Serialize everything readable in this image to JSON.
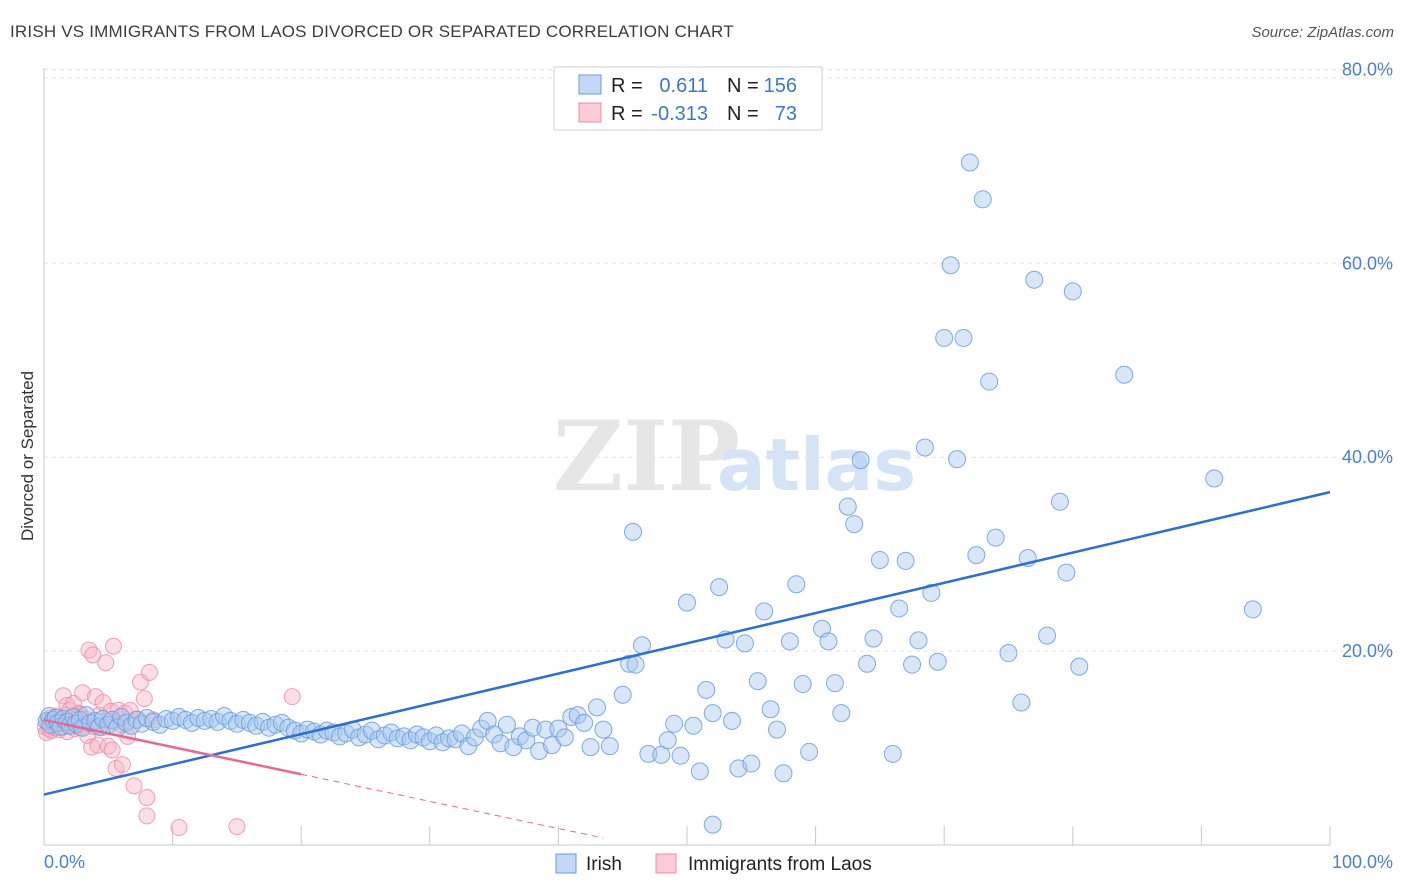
{
  "header": {
    "title": "IRISH VS IMMIGRANTS FROM LAOS DIVORCED OR SEPARATED CORRELATION CHART",
    "source": "Source: ZipAtlas.com"
  },
  "watermark": {
    "zip": "ZIP",
    "atlas": "atlas"
  },
  "legend": {
    "rows": [
      {
        "r_label": "R =",
        "r_value": "0.611",
        "n_label": "N =",
        "n_value": "156",
        "color": "#a9c8f0"
      },
      {
        "r_label": "R =",
        "r_value": "-0.313",
        "n_label": "N =",
        "n_value": "73",
        "color": "#f6b6c8"
      }
    ]
  },
  "bottom_legend": {
    "irish": "Irish",
    "laos": "Immigrants from Laos"
  },
  "colors": {
    "irish_fill": "#a9c8f0",
    "irish_stroke": "#6a9ee0",
    "irish_line": "#2f6fcf",
    "laos_fill": "#f6b6c8",
    "laos_stroke": "#ee8aa6",
    "laos_line": "#e46a92",
    "grid": "#e2e2e2",
    "tick_text": "#4a7fd1"
  },
  "chart_data": {
    "type": "scatter",
    "title": "IRISH VS IMMIGRANTS FROM LAOS DIVORCED OR SEPARATED CORRELATION CHART",
    "xlabel": "",
    "ylabel": "Divorced or Separated",
    "xlim": [
      0,
      100
    ],
    "ylim": [
      0,
      82
    ],
    "x_tick_labels": [
      "0.0%",
      "100.0%"
    ],
    "y_ticks": [
      20,
      40,
      60,
      80
    ],
    "y_tick_labels": [
      "20.0%",
      "40.0%",
      "60.0%",
      "80.0%"
    ],
    "grid": true,
    "legend_position": "top-center",
    "series": [
      {
        "name": "Irish",
        "R": 0.611,
        "N": 156,
        "trend": {
          "x0": 0,
          "y0": 5.2,
          "x1": 100,
          "y1": 36.4,
          "style": "solid"
        },
        "points": [
          [
            0.2,
            12.8
          ],
          [
            0.4,
            13.3
          ],
          [
            0.5,
            12.4
          ],
          [
            0.7,
            12.9
          ],
          [
            0.9,
            13.1
          ],
          [
            1.1,
            12.6
          ],
          [
            1.3,
            12.2
          ],
          [
            1.5,
            13.0
          ],
          [
            1.8,
            12.7
          ],
          [
            2.0,
            12.3
          ],
          [
            2.3,
            13.2
          ],
          [
            2.5,
            12.5
          ],
          [
            2.8,
            12.9
          ],
          [
            3.0,
            12.1
          ],
          [
            3.3,
            13.4
          ],
          [
            3.6,
            12.6
          ],
          [
            4.0,
            12.8
          ],
          [
            4.3,
            12.2
          ],
          [
            4.6,
            13.0
          ],
          [
            5.0,
            12.4
          ],
          [
            5.3,
            12.9
          ],
          [
            5.7,
            12.1
          ],
          [
            6.0,
            13.2
          ],
          [
            6.4,
            12.6
          ],
          [
            6.8,
            12.3
          ],
          [
            7.2,
            12.9
          ],
          [
            7.6,
            12.5
          ],
          [
            8.0,
            13.1
          ],
          [
            8.5,
            12.7
          ],
          [
            9.0,
            12.4
          ],
          [
            9.5,
            13.0
          ],
          [
            10.0,
            12.8
          ],
          [
            10.5,
            13.2
          ],
          [
            11.0,
            12.9
          ],
          [
            11.5,
            12.6
          ],
          [
            12.0,
            13.1
          ],
          [
            12.5,
            12.8
          ],
          [
            13.0,
            13.0
          ],
          [
            13.5,
            12.7
          ],
          [
            14.0,
            13.3
          ],
          [
            14.5,
            12.8
          ],
          [
            15.0,
            12.5
          ],
          [
            15.5,
            12.9
          ],
          [
            16.0,
            12.6
          ],
          [
            16.5,
            12.3
          ],
          [
            17.0,
            12.7
          ],
          [
            17.5,
            12.1
          ],
          [
            18.0,
            12.4
          ],
          [
            18.5,
            12.6
          ],
          [
            19.0,
            12.1
          ],
          [
            19.5,
            11.8
          ],
          [
            20.0,
            11.5
          ],
          [
            20.5,
            11.9
          ],
          [
            21.0,
            11.7
          ],
          [
            21.5,
            11.4
          ],
          [
            22.0,
            11.8
          ],
          [
            22.5,
            11.6
          ],
          [
            23.0,
            11.2
          ],
          [
            23.5,
            11.5
          ],
          [
            24.0,
            11.9
          ],
          [
            24.5,
            11.1
          ],
          [
            25.0,
            11.4
          ],
          [
            25.5,
            11.8
          ],
          [
            26.0,
            10.9
          ],
          [
            26.5,
            11.3
          ],
          [
            27.0,
            11.6
          ],
          [
            27.5,
            11.0
          ],
          [
            28.0,
            11.2
          ],
          [
            28.5,
            10.8
          ],
          [
            29.0,
            11.4
          ],
          [
            29.5,
            11.1
          ],
          [
            30.0,
            10.7
          ],
          [
            30.5,
            11.3
          ],
          [
            31.0,
            10.6
          ],
          [
            31.5,
            11.0
          ],
          [
            32.0,
            10.9
          ],
          [
            32.5,
            11.5
          ],
          [
            33.0,
            10.2
          ],
          [
            33.5,
            11.1
          ],
          [
            34.0,
            12.0
          ],
          [
            34.5,
            12.8
          ],
          [
            35.0,
            11.4
          ],
          [
            35.5,
            10.5
          ],
          [
            36.0,
            12.4
          ],
          [
            36.5,
            10.1
          ],
          [
            37.0,
            11.2
          ],
          [
            37.5,
            10.8
          ],
          [
            38.0,
            12.1
          ],
          [
            38.5,
            9.7
          ],
          [
            39.0,
            11.9
          ],
          [
            39.5,
            10.3
          ],
          [
            40.0,
            12.0
          ],
          [
            40.5,
            11.1
          ],
          [
            41.0,
            13.2
          ],
          [
            41.5,
            13.4
          ],
          [
            42.0,
            12.6
          ],
          [
            42.5,
            10.1
          ],
          [
            43.0,
            14.2
          ],
          [
            43.5,
            11.9
          ],
          [
            44.0,
            10.2
          ],
          [
            45.0,
            15.5
          ],
          [
            45.5,
            18.7
          ],
          [
            46.0,
            18.6
          ],
          [
            46.5,
            20.6
          ],
          [
            47.0,
            9.4
          ],
          [
            48.0,
            9.3
          ],
          [
            48.5,
            10.8
          ],
          [
            49.0,
            12.5
          ],
          [
            49.5,
            9.2
          ],
          [
            50.0,
            25.0
          ],
          [
            50.5,
            12.3
          ],
          [
            51.0,
            7.6
          ],
          [
            51.5,
            16.0
          ],
          [
            52.0,
            13.6
          ],
          [
            52.5,
            26.6
          ],
          [
            53.0,
            21.2
          ],
          [
            53.5,
            12.8
          ],
          [
            54.0,
            7.9
          ],
          [
            54.5,
            20.8
          ],
          [
            55.0,
            8.4
          ],
          [
            55.5,
            16.9
          ],
          [
            56.0,
            24.1
          ],
          [
            56.5,
            14.0
          ],
          [
            57.0,
            11.9
          ],
          [
            57.5,
            7.4
          ],
          [
            58.0,
            21.0
          ],
          [
            58.5,
            26.9
          ],
          [
            59.0,
            16.6
          ],
          [
            59.5,
            9.6
          ],
          [
            60.5,
            22.3
          ],
          [
            61.0,
            21.0
          ],
          [
            61.5,
            16.7
          ],
          [
            62.0,
            13.6
          ],
          [
            62.5,
            34.9
          ],
          [
            63.0,
            33.1
          ],
          [
            63.5,
            39.7
          ],
          [
            64.0,
            18.7
          ],
          [
            64.5,
            21.3
          ],
          [
            65.0,
            29.4
          ],
          [
            66.0,
            9.4
          ],
          [
            66.5,
            24.4
          ],
          [
            67.0,
            29.3
          ],
          [
            67.5,
            18.6
          ],
          [
            68.0,
            21.1
          ],
          [
            68.5,
            41.0
          ],
          [
            69.0,
            26.0
          ],
          [
            69.5,
            18.9
          ],
          [
            70.0,
            52.3
          ],
          [
            70.5,
            59.8
          ],
          [
            71.0,
            39.8
          ],
          [
            71.5,
            52.3
          ],
          [
            72.0,
            70.4
          ],
          [
            72.5,
            29.9
          ],
          [
            73.0,
            66.6
          ],
          [
            73.5,
            47.8
          ],
          [
            74.0,
            31.7
          ],
          [
            75.0,
            19.8
          ],
          [
            76.0,
            14.7
          ],
          [
            76.5,
            29.6
          ],
          [
            77.0,
            58.3
          ],
          [
            78.0,
            21.6
          ],
          [
            79.0,
            35.4
          ],
          [
            79.5,
            28.1
          ],
          [
            80.0,
            57.1
          ],
          [
            80.5,
            18.4
          ],
          [
            84.0,
            48.5
          ],
          [
            91.0,
            37.8
          ],
          [
            94.0,
            24.3
          ],
          [
            52.0,
            2.1
          ],
          [
            45.8,
            32.3
          ]
        ]
      },
      {
        "name": "Immigrants from Laos",
        "R": -0.313,
        "N": 73,
        "trend": {
          "x0": 0,
          "y0": 12.9,
          "x1": 20,
          "y1": 7.3,
          "style": "solid",
          "dashed_to_x": 43.5
        },
        "points": [
          [
            0.1,
            12.2
          ],
          [
            0.2,
            11.6
          ],
          [
            0.3,
            12.8
          ],
          [
            0.4,
            12.0
          ],
          [
            0.5,
            13.1
          ],
          [
            0.6,
            11.8
          ],
          [
            0.7,
            12.5
          ],
          [
            0.8,
            12.9
          ],
          [
            0.9,
            12.1
          ],
          [
            1.0,
            13.3
          ],
          [
            1.1,
            12.4
          ],
          [
            1.2,
            11.9
          ],
          [
            1.3,
            12.7
          ],
          [
            1.4,
            13.0
          ],
          [
            1.5,
            12.2
          ],
          [
            1.6,
            12.6
          ],
          [
            1.7,
            13.4
          ],
          [
            1.8,
            11.7
          ],
          [
            1.9,
            12.9
          ],
          [
            2.0,
            12.3
          ],
          [
            2.1,
            13.1
          ],
          [
            2.2,
            12.5
          ],
          [
            2.3,
            12.8
          ],
          [
            2.4,
            12.0
          ],
          [
            2.5,
            13.2
          ],
          [
            2.6,
            12.4
          ],
          [
            2.7,
            13.6
          ],
          [
            2.8,
            12.1
          ],
          [
            2.9,
            12.9
          ],
          [
            3.0,
            12.6
          ],
          [
            1.5,
            15.4
          ],
          [
            1.8,
            14.4
          ],
          [
            2.0,
            13.9
          ],
          [
            2.3,
            14.6
          ],
          [
            2.5,
            12.7
          ],
          [
            2.8,
            13.5
          ],
          [
            3.0,
            15.7
          ],
          [
            3.2,
            13.0
          ],
          [
            3.4,
            11.3
          ],
          [
            3.5,
            20.1
          ],
          [
            3.7,
            10.1
          ],
          [
            3.8,
            19.6
          ],
          [
            3.9,
            12.2
          ],
          [
            4.0,
            15.3
          ],
          [
            4.2,
            10.3
          ],
          [
            4.3,
            13.4
          ],
          [
            4.5,
            12.1
          ],
          [
            4.6,
            14.7
          ],
          [
            4.7,
            12.8
          ],
          [
            4.8,
            18.8
          ],
          [
            5.0,
            10.2
          ],
          [
            5.2,
            13.8
          ],
          [
            5.3,
            9.8
          ],
          [
            5.4,
            20.5
          ],
          [
            5.5,
            12.7
          ],
          [
            5.6,
            7.9
          ],
          [
            5.8,
            13.9
          ],
          [
            6.0,
            12.4
          ],
          [
            6.1,
            8.3
          ],
          [
            6.3,
            13.6
          ],
          [
            6.5,
            11.2
          ],
          [
            6.7,
            13.9
          ],
          [
            7.0,
            6.1
          ],
          [
            7.3,
            13.0
          ],
          [
            7.5,
            16.8
          ],
          [
            7.8,
            15.1
          ],
          [
            8.0,
            4.9
          ],
          [
            8.2,
            17.8
          ],
          [
            8.0,
            3.0
          ],
          [
            8.5,
            12.9
          ],
          [
            10.5,
            1.8
          ],
          [
            15.0,
            1.9
          ],
          [
            19.3,
            15.3
          ]
        ]
      }
    ]
  }
}
